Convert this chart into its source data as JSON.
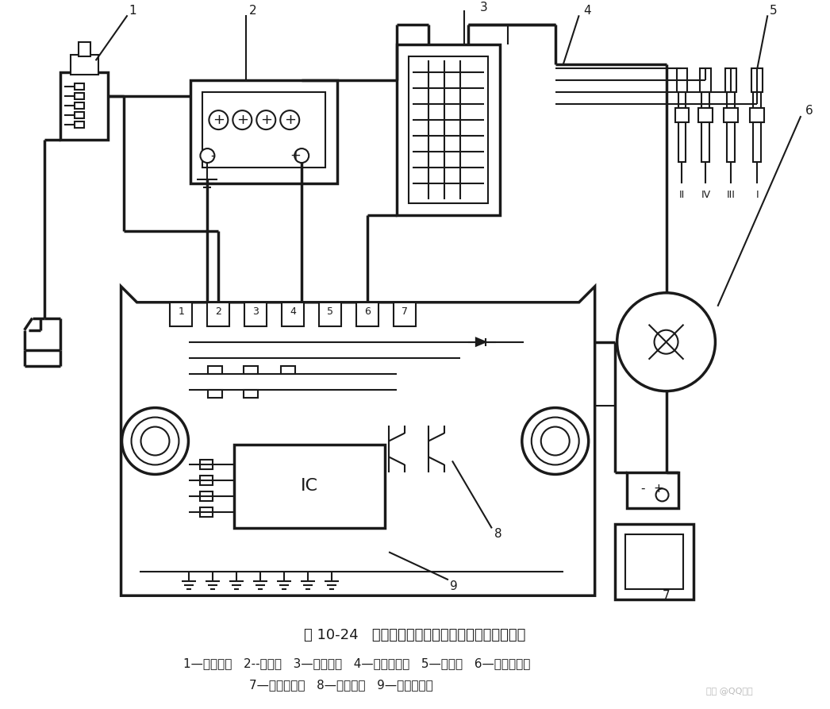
{
  "title": "图 10-24   霍耳效应式无触点点火装置的组成示意图",
  "legend_line1": "1—点火开关   2--蓄电池   3—点火线圈   4—高压阻尼线   5—火花塞   6—霍耳分电器",
  "legend_line2": "7—霍耳传感器   8—达林顿管   9—点火控制器",
  "bg_color": "#ffffff",
  "line_color": "#1a1a1a",
  "lw": 1.5,
  "lw2": 2.5
}
